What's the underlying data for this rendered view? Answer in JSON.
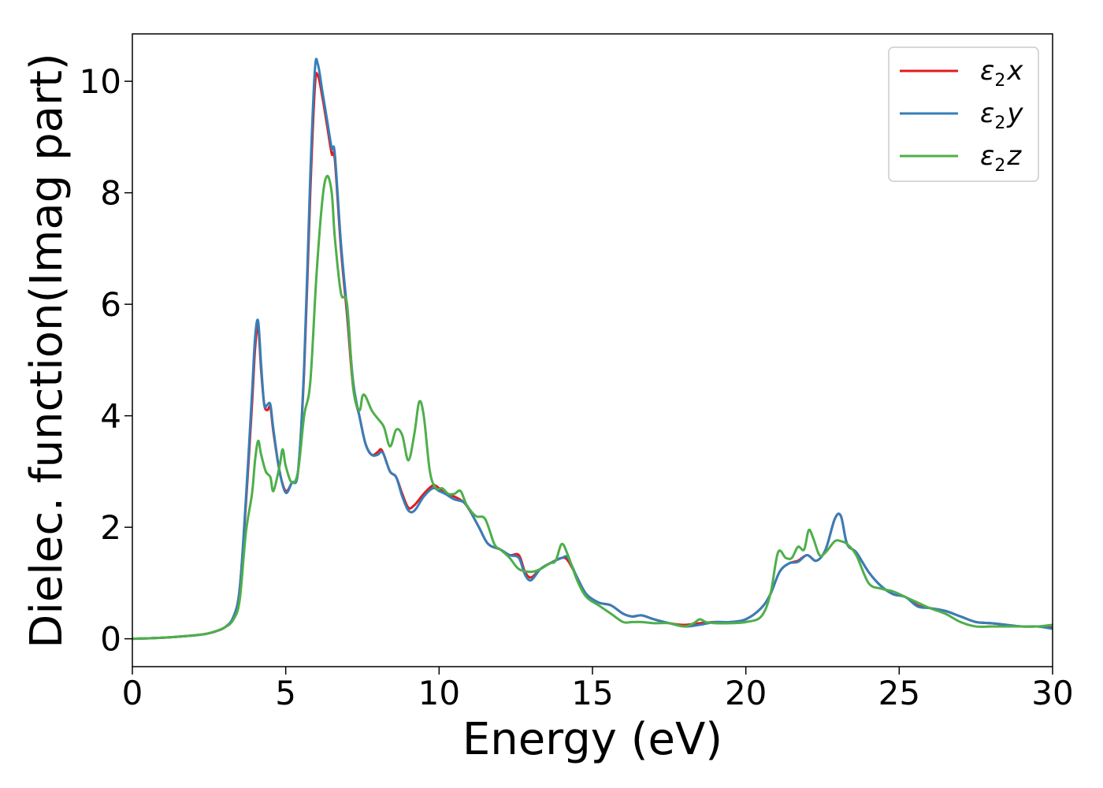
{
  "chart_data": {
    "type": "line",
    "xlabel": "Energy (eV)",
    "ylabel": "Dielec. function(Imag part)",
    "xlim": [
      0,
      30
    ],
    "ylim": [
      -0.5,
      10.85
    ],
    "xticks": [
      0,
      5,
      10,
      15,
      20,
      25,
      30
    ],
    "yticks": [
      0,
      2,
      4,
      6,
      8,
      10
    ],
    "grid": false,
    "legend_position": "top-right",
    "series": [
      {
        "name": "ε2x",
        "legend": {
          "base": "ε",
          "sub": "2",
          "var": "x"
        },
        "color": "#e41a1c",
        "x": [
          0,
          1,
          2,
          2.5,
          3,
          3.3,
          3.5,
          3.7,
          3.9,
          4.0,
          4.1,
          4.2,
          4.3,
          4.4,
          4.5,
          4.6,
          4.8,
          5.0,
          5.2,
          5.4,
          5.6,
          5.8,
          5.95,
          6.05,
          6.2,
          6.35,
          6.5,
          6.6,
          6.8,
          7.0,
          7.2,
          7.4,
          7.6,
          7.8,
          8.0,
          8.1,
          8.2,
          8.4,
          8.6,
          8.8,
          9.0,
          9.2,
          9.5,
          9.8,
          10.0,
          10.2,
          10.5,
          10.8,
          11.0,
          11.3,
          11.6,
          12.0,
          12.3,
          12.6,
          12.8,
          13.0,
          13.3,
          13.6,
          14.0,
          14.2,
          14.5,
          14.8,
          15.2,
          15.6,
          16.0,
          16.3,
          16.6,
          17.0,
          17.5,
          18.0,
          18.5,
          19.0,
          19.5,
          20.0,
          20.5,
          20.8,
          21.1,
          21.4,
          21.7,
          22.0,
          22.3,
          22.6,
          22.9,
          23.1,
          23.3,
          23.6,
          24.0,
          24.4,
          24.8,
          25.2,
          25.6,
          26.0,
          26.5,
          27.0,
          27.5,
          28.0,
          28.5,
          29.0,
          29.5,
          30.0
        ],
        "y": [
          0.0,
          0.02,
          0.06,
          0.1,
          0.2,
          0.4,
          0.9,
          2.4,
          4.2,
          5.2,
          5.6,
          4.8,
          4.2,
          4.1,
          4.15,
          3.7,
          3.0,
          2.65,
          2.8,
          3.0,
          4.8,
          8.0,
          9.9,
          10.1,
          9.7,
          9.2,
          8.7,
          8.6,
          7.0,
          5.8,
          4.5,
          4.0,
          3.5,
          3.3,
          3.35,
          3.4,
          3.3,
          3.0,
          2.9,
          2.6,
          2.35,
          2.4,
          2.6,
          2.75,
          2.7,
          2.6,
          2.55,
          2.45,
          2.3,
          2.0,
          1.7,
          1.6,
          1.5,
          1.5,
          1.2,
          1.1,
          1.25,
          1.35,
          1.45,
          1.4,
          1.1,
          0.8,
          0.65,
          0.6,
          0.45,
          0.4,
          0.42,
          0.35,
          0.28,
          0.25,
          0.28,
          0.3,
          0.3,
          0.35,
          0.55,
          0.8,
          1.2,
          1.35,
          1.4,
          1.5,
          1.4,
          1.6,
          2.15,
          2.2,
          1.7,
          1.55,
          1.2,
          0.95,
          0.8,
          0.75,
          0.6,
          0.55,
          0.5,
          0.4,
          0.3,
          0.28,
          0.25,
          0.22,
          0.22,
          0.2
        ]
      },
      {
        "name": "ε2y",
        "legend": {
          "base": "ε",
          "sub": "2",
          "var": "y"
        },
        "color": "#377eb8",
        "x": [
          0,
          1,
          2,
          2.5,
          3,
          3.3,
          3.5,
          3.7,
          3.9,
          4.0,
          4.1,
          4.2,
          4.3,
          4.4,
          4.5,
          4.6,
          4.8,
          5.0,
          5.2,
          5.4,
          5.6,
          5.8,
          5.95,
          6.05,
          6.2,
          6.35,
          6.5,
          6.6,
          6.8,
          7.0,
          7.2,
          7.4,
          7.6,
          7.8,
          8.0,
          8.1,
          8.2,
          8.4,
          8.6,
          8.8,
          9.0,
          9.2,
          9.5,
          9.8,
          10.0,
          10.2,
          10.5,
          10.8,
          11.0,
          11.3,
          11.6,
          12.0,
          12.3,
          12.6,
          12.8,
          13.0,
          13.3,
          13.6,
          14.0,
          14.2,
          14.5,
          14.8,
          15.2,
          15.6,
          16.0,
          16.3,
          16.6,
          17.0,
          17.5,
          18.0,
          18.5,
          19.0,
          19.5,
          20.0,
          20.5,
          20.8,
          21.1,
          21.4,
          21.7,
          22.0,
          22.3,
          22.6,
          22.9,
          23.1,
          23.3,
          23.6,
          24.0,
          24.4,
          24.8,
          25.2,
          25.6,
          26.0,
          26.5,
          27.0,
          27.5,
          28.0,
          28.5,
          29.0,
          29.5,
          30.0
        ],
        "y": [
          0.0,
          0.02,
          0.06,
          0.1,
          0.2,
          0.4,
          0.9,
          2.5,
          4.4,
          5.4,
          5.7,
          4.9,
          4.2,
          4.2,
          4.2,
          3.75,
          3.0,
          2.62,
          2.8,
          3.0,
          4.9,
          8.3,
          10.2,
          10.3,
          9.8,
          9.3,
          8.8,
          8.7,
          7.1,
          5.9,
          4.6,
          4.0,
          3.5,
          3.3,
          3.3,
          3.35,
          3.3,
          3.0,
          2.9,
          2.55,
          2.3,
          2.3,
          2.55,
          2.7,
          2.65,
          2.6,
          2.5,
          2.45,
          2.3,
          2.0,
          1.7,
          1.6,
          1.5,
          1.45,
          1.15,
          1.05,
          1.25,
          1.35,
          1.45,
          1.45,
          1.1,
          0.8,
          0.65,
          0.6,
          0.45,
          0.4,
          0.42,
          0.35,
          0.28,
          0.22,
          0.25,
          0.3,
          0.3,
          0.35,
          0.55,
          0.8,
          1.2,
          1.35,
          1.38,
          1.5,
          1.4,
          1.6,
          2.15,
          2.2,
          1.7,
          1.55,
          1.2,
          0.95,
          0.8,
          0.75,
          0.58,
          0.55,
          0.5,
          0.4,
          0.3,
          0.28,
          0.25,
          0.22,
          0.22,
          0.18
        ]
      },
      {
        "name": "ε2z",
        "legend": {
          "base": "ε",
          "sub": "2",
          "var": "z"
        },
        "color": "#4daf4a",
        "x": [
          0,
          1,
          2,
          2.5,
          3,
          3.3,
          3.5,
          3.7,
          3.9,
          4.0,
          4.1,
          4.2,
          4.35,
          4.5,
          4.6,
          4.8,
          4.9,
          5.0,
          5.2,
          5.4,
          5.6,
          5.8,
          6.0,
          6.2,
          6.35,
          6.5,
          6.6,
          6.8,
          7.0,
          7.2,
          7.4,
          7.5,
          7.6,
          7.8,
          8.0,
          8.2,
          8.4,
          8.6,
          8.8,
          9.0,
          9.2,
          9.35,
          9.5,
          9.7,
          9.9,
          10.1,
          10.3,
          10.5,
          10.7,
          10.9,
          11.2,
          11.5,
          11.8,
          12.0,
          12.3,
          12.6,
          13.0,
          13.3,
          13.6,
          13.8,
          14.0,
          14.2,
          14.5,
          14.8,
          15.2,
          15.6,
          16.0,
          16.3,
          16.6,
          17.0,
          17.5,
          18.0,
          18.3,
          18.5,
          18.7,
          19.0,
          19.5,
          20.0,
          20.5,
          20.8,
          21.05,
          21.3,
          21.5,
          21.7,
          21.9,
          22.05,
          22.2,
          22.4,
          22.6,
          22.9,
          23.1,
          23.3,
          23.6,
          24.0,
          24.4,
          24.8,
          25.2,
          25.6,
          26.0,
          26.5,
          27.0,
          27.5,
          28.0,
          28.5,
          29.0,
          29.5,
          30.0
        ],
        "y": [
          0.0,
          0.02,
          0.06,
          0.1,
          0.2,
          0.35,
          0.7,
          1.9,
          2.6,
          3.2,
          3.55,
          3.3,
          3.0,
          2.9,
          2.65,
          3.1,
          3.4,
          3.1,
          2.8,
          3.0,
          4.0,
          4.6,
          6.5,
          7.9,
          8.3,
          8.0,
          7.2,
          6.2,
          6.0,
          4.5,
          4.1,
          4.35,
          4.35,
          4.1,
          3.95,
          3.8,
          3.45,
          3.75,
          3.65,
          3.2,
          3.7,
          4.25,
          4.0,
          3.0,
          2.7,
          2.7,
          2.6,
          2.6,
          2.65,
          2.4,
          2.2,
          2.15,
          1.7,
          1.6,
          1.45,
          1.25,
          1.2,
          1.25,
          1.35,
          1.4,
          1.7,
          1.5,
          1.05,
          0.75,
          0.6,
          0.45,
          0.3,
          0.3,
          0.3,
          0.28,
          0.28,
          0.22,
          0.28,
          0.35,
          0.3,
          0.28,
          0.28,
          0.3,
          0.4,
          0.8,
          1.55,
          1.45,
          1.45,
          1.65,
          1.6,
          1.95,
          1.8,
          1.5,
          1.55,
          1.75,
          1.75,
          1.7,
          1.5,
          1.0,
          0.9,
          0.85,
          0.75,
          0.65,
          0.55,
          0.45,
          0.3,
          0.22,
          0.22,
          0.22,
          0.22,
          0.22,
          0.25
        ]
      }
    ]
  }
}
